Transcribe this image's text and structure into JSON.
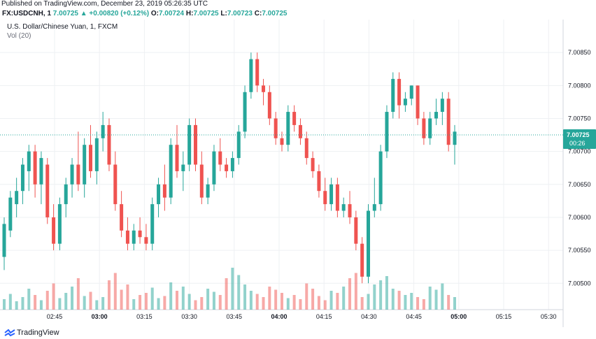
{
  "header": {
    "published": "Published on TradingView.com, December 23, 2019 05:26:35 UTC",
    "symbol": "FX:USDCNH, 1",
    "last": "7.00725",
    "change_arrow": "▲",
    "change": "+0.00820 (+0.12%)",
    "o_label": "O:",
    "o_value": "7.00724",
    "h_label": "H:",
    "h_value": "7.00725",
    "l_label": "L:",
    "l_value": "7.00723",
    "c_label": "C:",
    "c_value": "7.00725"
  },
  "legend": {
    "instrument": "U.S. Dollar/Chinese Yuan, 1, FXCM",
    "volume": "Vol (20)"
  },
  "price_badge": {
    "price": "7.00725",
    "countdown": "00:26"
  },
  "footer": {
    "brand": "TradingView"
  },
  "colors": {
    "up": "#26a69a",
    "down": "#ef5350",
    "grid": "#eef0f3",
    "axis": "#787b86"
  },
  "chart_data": {
    "type": "candlestick",
    "y_ticks": [
      "7.00850",
      "7.00800",
      "7.00750",
      "7.00700",
      "7.00650",
      "7.00600",
      "7.00550",
      "7.00500"
    ],
    "x_ticks": [
      "02:45",
      "03:00",
      "03:15",
      "03:30",
      "03:45",
      "04:00",
      "04:15",
      "04:30",
      "04:45",
      "05:00",
      "05:15",
      "05:30"
    ],
    "ylim": [
      7.0046,
      7.009
    ],
    "current_price": 7.00725,
    "candles": [
      {
        "t": "02:34",
        "o": 7.0054,
        "h": 7.006,
        "l": 7.0052,
        "c": 7.0059
      },
      {
        "t": "02:36",
        "o": 7.0058,
        "h": 7.0064,
        "l": 7.0057,
        "c": 7.0063
      },
      {
        "t": "02:38",
        "o": 7.0062,
        "h": 7.0066,
        "l": 7.006,
        "c": 7.0064
      },
      {
        "t": "02:40",
        "o": 7.0064,
        "h": 7.0069,
        "l": 7.0062,
        "c": 7.0068
      },
      {
        "t": "02:42",
        "o": 7.0067,
        "h": 7.0071,
        "l": 7.0064,
        "c": 7.007
      },
      {
        "t": "02:44",
        "o": 7.007,
        "h": 7.0071,
        "l": 7.0063,
        "c": 7.0065
      },
      {
        "t": "02:46",
        "o": 7.0065,
        "h": 7.007,
        "l": 7.0062,
        "c": 7.0069
      },
      {
        "t": "02:48",
        "o": 7.0068,
        "h": 7.0069,
        "l": 7.0059,
        "c": 7.006
      },
      {
        "t": "02:50",
        "o": 7.006,
        "h": 7.0062,
        "l": 7.0055,
        "c": 7.0056
      },
      {
        "t": "02:52",
        "o": 7.0056,
        "h": 7.0063,
        "l": 7.0055,
        "c": 7.0062
      },
      {
        "t": "02:54",
        "o": 7.0062,
        "h": 7.0066,
        "l": 7.006,
        "c": 7.0065
      },
      {
        "t": "02:56",
        "o": 7.0065,
        "h": 7.0069,
        "l": 7.0063,
        "c": 7.0068
      },
      {
        "t": "02:58",
        "o": 7.0068,
        "h": 7.0073,
        "l": 7.0064,
        "c": 7.0065
      },
      {
        "t": "03:00",
        "o": 7.0065,
        "h": 7.0072,
        "l": 7.0063,
        "c": 7.0071
      },
      {
        "t": "03:02",
        "o": 7.0071,
        "h": 7.0074,
        "l": 7.0066,
        "c": 7.0067
      },
      {
        "t": "03:04",
        "o": 7.0067,
        "h": 7.0073,
        "l": 7.0065,
        "c": 7.0072
      },
      {
        "t": "03:06",
        "o": 7.0072,
        "h": 7.0076,
        "l": 7.007,
        "c": 7.0074
      },
      {
        "t": "03:08",
        "o": 7.0074,
        "h": 7.0075,
        "l": 7.0067,
        "c": 7.0068
      },
      {
        "t": "03:10",
        "o": 7.0068,
        "h": 7.007,
        "l": 7.0061,
        "c": 7.0062
      },
      {
        "t": "03:12",
        "o": 7.0062,
        "h": 7.0064,
        "l": 7.0057,
        "c": 7.0058
      },
      {
        "t": "03:14",
        "o": 7.0058,
        "h": 7.006,
        "l": 7.0055,
        "c": 7.0056
      },
      {
        "t": "03:16",
        "o": 7.0056,
        "h": 7.0059,
        "l": 7.0055,
        "c": 7.0058
      },
      {
        "t": "03:18",
        "o": 7.0058,
        "h": 7.006,
        "l": 7.0056,
        "c": 7.0057
      },
      {
        "t": "03:20",
        "o": 7.0057,
        "h": 7.0059,
        "l": 7.0055,
        "c": 7.0056
      },
      {
        "t": "03:22",
        "o": 7.0056,
        "h": 7.0063,
        "l": 7.0055,
        "c": 7.0062
      },
      {
        "t": "03:24",
        "o": 7.0062,
        "h": 7.0066,
        "l": 7.006,
        "c": 7.0065
      },
      {
        "t": "03:26",
        "o": 7.0065,
        "h": 7.0068,
        "l": 7.0061,
        "c": 7.0063
      },
      {
        "t": "03:28",
        "o": 7.0063,
        "h": 7.0072,
        "l": 7.0062,
        "c": 7.0071
      },
      {
        "t": "03:30",
        "o": 7.0071,
        "h": 7.0074,
        "l": 7.0066,
        "c": 7.0067
      },
      {
        "t": "03:32",
        "o": 7.0067,
        "h": 7.007,
        "l": 7.0064,
        "c": 7.0068
      },
      {
        "t": "03:34",
        "o": 7.0068,
        "h": 7.0075,
        "l": 7.0067,
        "c": 7.0074
      },
      {
        "t": "03:36",
        "o": 7.0074,
        "h": 7.0075,
        "l": 7.0067,
        "c": 7.0068
      },
      {
        "t": "03:38",
        "o": 7.0068,
        "h": 7.007,
        "l": 7.0062,
        "c": 7.0063
      },
      {
        "t": "03:40",
        "o": 7.0063,
        "h": 7.0066,
        "l": 7.0062,
        "c": 7.0065
      },
      {
        "t": "03:42",
        "o": 7.0065,
        "h": 7.0071,
        "l": 7.0064,
        "c": 7.007
      },
      {
        "t": "03:44",
        "o": 7.007,
        "h": 7.0072,
        "l": 7.0067,
        "c": 7.0068
      },
      {
        "t": "03:46",
        "o": 7.0068,
        "h": 7.0069,
        "l": 7.0066,
        "c": 7.0067
      },
      {
        "t": "03:48",
        "o": 7.0067,
        "h": 7.007,
        "l": 7.0066,
        "c": 7.0069
      },
      {
        "t": "03:50",
        "o": 7.0069,
        "h": 7.0074,
        "l": 7.0068,
        "c": 7.0073
      },
      {
        "t": "03:52",
        "o": 7.0073,
        "h": 7.008,
        "l": 7.0072,
        "c": 7.0079
      },
      {
        "t": "03:54",
        "o": 7.0079,
        "h": 7.0085,
        "l": 7.0078,
        "c": 7.0084
      },
      {
        "t": "03:56",
        "o": 7.0084,
        "h": 7.0085,
        "l": 7.0079,
        "c": 7.008
      },
      {
        "t": "03:58",
        "o": 7.008,
        "h": 7.0081,
        "l": 7.0077,
        "c": 7.0079
      },
      {
        "t": "04:00",
        "o": 7.0079,
        "h": 7.008,
        "l": 7.0074,
        "c": 7.0075
      },
      {
        "t": "04:02",
        "o": 7.0075,
        "h": 7.0076,
        "l": 7.0071,
        "c": 7.0072
      },
      {
        "t": "04:04",
        "o": 7.0072,
        "h": 7.0073,
        "l": 7.007,
        "c": 7.0071
      },
      {
        "t": "04:06",
        "o": 7.0071,
        "h": 7.0077,
        "l": 7.007,
        "c": 7.0076
      },
      {
        "t": "04:08",
        "o": 7.0076,
        "h": 7.0077,
        "l": 7.0073,
        "c": 7.0074
      },
      {
        "t": "04:10",
        "o": 7.0074,
        "h": 7.0075,
        "l": 7.0071,
        "c": 7.0072
      },
      {
        "t": "04:12",
        "o": 7.0072,
        "h": 7.0073,
        "l": 7.0068,
        "c": 7.0069
      },
      {
        "t": "04:14",
        "o": 7.0069,
        "h": 7.007,
        "l": 7.0066,
        "c": 7.0067
      },
      {
        "t": "04:16",
        "o": 7.0067,
        "h": 7.0068,
        "l": 7.0063,
        "c": 7.0064
      },
      {
        "t": "04:18",
        "o": 7.0064,
        "h": 7.0066,
        "l": 7.0061,
        "c": 7.0062
      },
      {
        "t": "04:20",
        "o": 7.0062,
        "h": 7.0066,
        "l": 7.0061,
        "c": 7.0065
      },
      {
        "t": "04:22",
        "o": 7.0065,
        "h": 7.0066,
        "l": 7.006,
        "c": 7.0061
      },
      {
        "t": "04:24",
        "o": 7.0061,
        "h": 7.0063,
        "l": 7.006,
        "c": 7.0062
      },
      {
        "t": "04:26",
        "o": 7.0062,
        "h": 7.0064,
        "l": 7.0059,
        "c": 7.006
      },
      {
        "t": "04:28",
        "o": 7.006,
        "h": 7.0061,
        "l": 7.0055,
        "c": 7.0056
      },
      {
        "t": "04:30",
        "o": 7.0056,
        "h": 7.0057,
        "l": 7.005,
        "c": 7.0051
      },
      {
        "t": "04:32",
        "o": 7.0051,
        "h": 7.0062,
        "l": 7.005,
        "c": 7.0061
      },
      {
        "t": "04:34",
        "o": 7.0061,
        "h": 7.0066,
        "l": 7.006,
        "c": 7.0062
      },
      {
        "t": "04:36",
        "o": 7.0062,
        "h": 7.0071,
        "l": 7.0061,
        "c": 7.007
      },
      {
        "t": "04:38",
        "o": 7.007,
        "h": 7.0077,
        "l": 7.0069,
        "c": 7.0076
      },
      {
        "t": "04:40",
        "o": 7.0076,
        "h": 7.0082,
        "l": 7.0075,
        "c": 7.0081
      },
      {
        "t": "04:42",
        "o": 7.0081,
        "h": 7.0082,
        "l": 7.0075,
        "c": 7.0077
      },
      {
        "t": "04:44",
        "o": 7.0077,
        "h": 7.0079,
        "l": 7.0076,
        "c": 7.0078
      },
      {
        "t": "04:46",
        "o": 7.0078,
        "h": 7.008,
        "l": 7.0077,
        "c": 7.008
      },
      {
        "t": "04:48",
        "o": 7.008,
        "h": 7.008,
        "l": 7.0074,
        "c": 7.0075
      },
      {
        "t": "04:50",
        "o": 7.0075,
        "h": 7.0076,
        "l": 7.0071,
        "c": 7.0072
      },
      {
        "t": "04:52",
        "o": 7.0072,
        "h": 7.0076,
        "l": 7.0071,
        "c": 7.0075
      },
      {
        "t": "04:54",
        "o": 7.0075,
        "h": 7.0078,
        "l": 7.0074,
        "c": 7.0076
      },
      {
        "t": "04:56",
        "o": 7.0076,
        "h": 7.0079,
        "l": 7.0074,
        "c": 7.0078
      },
      {
        "t": "04:58",
        "o": 7.0078,
        "h": 7.0079,
        "l": 7.007,
        "c": 7.0071
      },
      {
        "t": "05:00",
        "o": 7.0071,
        "h": 7.0074,
        "l": 7.0068,
        "c": 7.0073
      }
    ],
    "volumes": [
      10,
      15,
      8,
      12,
      20,
      14,
      9,
      18,
      25,
      11,
      16,
      22,
      30,
      13,
      17,
      9,
      12,
      28,
      35,
      19,
      24,
      10,
      14,
      16,
      21,
      11,
      13,
      26,
      18,
      22,
      15,
      9,
      12,
      20,
      17,
      14,
      30,
      40,
      33,
      24,
      18,
      15,
      12,
      22,
      19,
      16,
      11,
      14,
      10,
      25,
      20,
      13,
      9,
      18,
      16,
      22,
      30,
      35,
      12,
      15,
      24,
      28,
      32,
      20,
      18,
      14,
      16,
      12,
      10,
      22,
      19,
      25,
      14,
      12
    ]
  }
}
